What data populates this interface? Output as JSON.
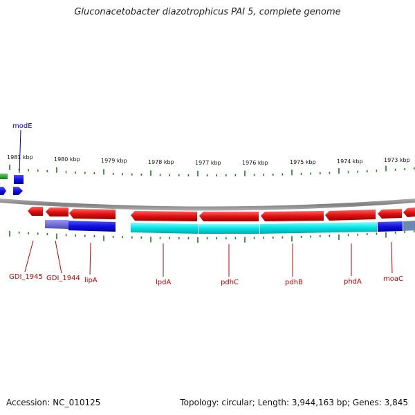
{
  "title": "Gluconacetobacter diazotrophicus PAI 5, complete genome",
  "footer": {
    "accession": "Accession: NC_010125",
    "stats": "Topology: circular; Length: 3,944,163 bp; Genes: 3,845"
  },
  "kbp_labels": [
    "1981 kbp",
    "1980 kbp",
    "1979 kbp",
    "1978 kbp",
    "1977 kbp",
    "1976 kbp",
    "1975 kbp",
    "1974 kbp",
    "1973 kbp"
  ],
  "gene_labels": [
    "modE",
    "GDI_1945",
    "GDI_1944",
    "lipA",
    "lpdA",
    "pdhC",
    "pdhB",
    "phdA",
    "moaC"
  ],
  "colors": {
    "gene_red": "#e01010",
    "cds_blue": "#1010e0",
    "cds_cyan": "#00e0e0",
    "cds_purple": "#7070d8",
    "cds_green": "#20a020",
    "backbone": "#888888",
    "tick_green": "#1a7a1a",
    "label_red": "#c00000",
    "label_blue": "#0000c0"
  }
}
